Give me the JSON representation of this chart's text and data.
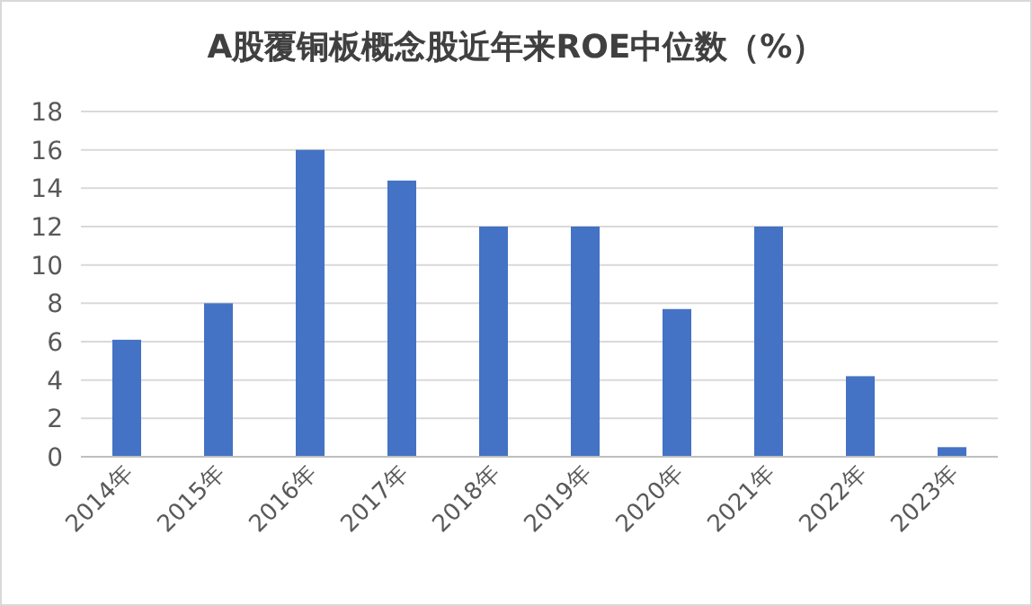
{
  "chart_data": {
    "type": "bar",
    "title": "A股覆铜板概念股近年来ROE中位数（%）",
    "categories": [
      "2014年",
      "2015年",
      "2016年",
      "2017年",
      "2018年",
      "2019年",
      "2020年",
      "2021年",
      "2022年",
      "2023年"
    ],
    "values": [
      6.1,
      8.0,
      16.0,
      14.4,
      12.0,
      12.0,
      7.7,
      12.0,
      4.2,
      0.5
    ],
    "color": "#4472c4",
    "ylim": [
      0,
      18
    ],
    "yticks": [
      0,
      2,
      4,
      6,
      8,
      10,
      12,
      14,
      16,
      18
    ],
    "grid": "y"
  }
}
